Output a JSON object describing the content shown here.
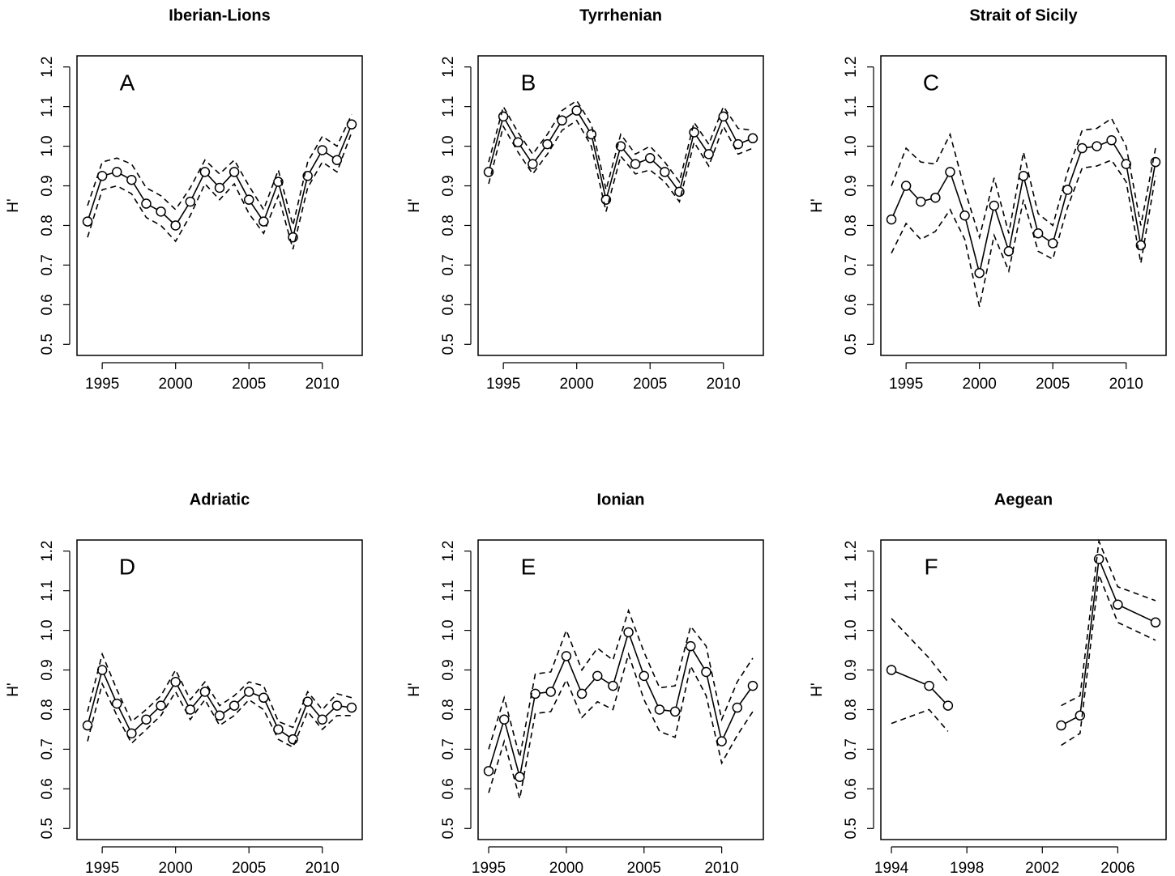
{
  "chart_data": [
    {
      "type": "line",
      "title": "Iberian-Lions",
      "annotation": "A",
      "ylabel": "H'",
      "x": [
        1994,
        1995,
        1996,
        1997,
        1998,
        1999,
        2000,
        2001,
        2002,
        2003,
        2004,
        2005,
        2006,
        2007,
        2008,
        2009,
        2010,
        2011,
        2012
      ],
      "series": [
        {
          "color": "#000000",
          "markers": true,
          "values": [
            0.81,
            0.925,
            0.935,
            0.915,
            0.855,
            0.835,
            0.8,
            0.86,
            0.935,
            0.895,
            0.935,
            0.865,
            0.81,
            0.91,
            0.77,
            0.925,
            0.99,
            0.965,
            1.055
          ]
        },
        {
          "color": "#000000",
          "dashed": true,
          "values": [
            0.85,
            0.96,
            0.97,
            0.955,
            0.895,
            0.875,
            0.84,
            0.895,
            0.965,
            0.93,
            0.965,
            0.9,
            0.84,
            0.94,
            0.8,
            0.96,
            1.025,
            1.0,
            1.08
          ]
        },
        {
          "color": "#000000",
          "dashed": true,
          "values": [
            0.77,
            0.89,
            0.9,
            0.88,
            0.82,
            0.8,
            0.76,
            0.825,
            0.905,
            0.865,
            0.905,
            0.83,
            0.78,
            0.875,
            0.74,
            0.895,
            0.96,
            0.935,
            1.035
          ]
        }
      ],
      "xlim": [
        1993.28,
        2012.72
      ],
      "xticks": [
        1995,
        2000,
        2005,
        2010
      ],
      "ylim": [
        0.472,
        1.228
      ],
      "yticks": [
        0.5,
        0.6,
        0.7,
        0.8,
        0.9,
        {
          "value": 1.0,
          "label": "1.0"
        },
        1.1,
        1.2
      ]
    },
    {
      "type": "line",
      "title": "Tyrrhenian",
      "annotation": "B",
      "ylabel": "H'",
      "x": [
        1994,
        1995,
        1996,
        1997,
        1998,
        1999,
        2000,
        2001,
        2002,
        2003,
        2004,
        2005,
        2006,
        2007,
        2008,
        2009,
        2010,
        2011,
        2012
      ],
      "series": [
        {
          "color": "#000000",
          "markers": true,
          "values": [
            0.935,
            1.075,
            1.01,
            0.955,
            1.005,
            1.065,
            1.09,
            1.03,
            0.865,
            1.0,
            0.955,
            0.97,
            0.935,
            0.885,
            1.035,
            0.98,
            1.075,
            1.005,
            1.02
          ]
        },
        {
          "color": "#000000",
          "dashed": true,
          "values": [
            0.96,
            1.1,
            1.035,
            0.98,
            1.03,
            1.09,
            1.115,
            1.055,
            0.89,
            1.03,
            0.98,
            1.0,
            0.96,
            0.91,
            1.06,
            1.005,
            1.1,
            1.045,
            1.04
          ]
        },
        {
          "color": "#000000",
          "dashed": true,
          "values": [
            0.905,
            1.05,
            0.985,
            0.93,
            0.98,
            1.04,
            1.065,
            1.0,
            0.835,
            0.975,
            0.93,
            0.94,
            0.91,
            0.86,
            1.01,
            0.95,
            1.05,
            0.98,
            0.995
          ]
        }
      ],
      "xlim": [
        1993.28,
        2012.72
      ],
      "xticks": [
        1995,
        2000,
        2005,
        2010
      ],
      "ylim": [
        0.472,
        1.228
      ],
      "yticks": [
        0.5,
        0.6,
        0.7,
        0.8,
        0.9,
        {
          "value": 1.0,
          "label": "1.0"
        },
        1.1,
        1.2
      ]
    },
    {
      "type": "line",
      "title": "Strait of Sicily",
      "annotation": "C",
      "ylabel": "H'",
      "x": [
        1994,
        1995,
        1996,
        1997,
        1998,
        1999,
        2000,
        2001,
        2002,
        2003,
        2004,
        2005,
        2006,
        2007,
        2008,
        2009,
        2010,
        2011,
        2012
      ],
      "series": [
        {
          "color": "#000000",
          "markers": true,
          "values": [
            0.815,
            0.9,
            0.86,
            0.87,
            0.935,
            0.825,
            0.68,
            0.85,
            0.735,
            0.925,
            0.78,
            0.755,
            0.89,
            0.995,
            1.0,
            1.015,
            0.955,
            0.75,
            0.96
          ]
        },
        {
          "color": "#000000",
          "dashed": true,
          "values": [
            0.9,
            0.995,
            0.96,
            0.955,
            1.03,
            0.89,
            0.77,
            0.92,
            0.78,
            0.985,
            0.83,
            0.8,
            0.935,
            1.04,
            1.045,
            1.07,
            1.0,
            0.8,
            0.995
          ]
        },
        {
          "color": "#000000",
          "dashed": true,
          "values": [
            0.73,
            0.805,
            0.765,
            0.785,
            0.84,
            0.765,
            0.595,
            0.775,
            0.685,
            0.865,
            0.735,
            0.715,
            0.845,
            0.945,
            0.95,
            0.965,
            0.91,
            0.705,
            0.925
          ]
        }
      ],
      "xlim": [
        1993.28,
        2012.72
      ],
      "xticks": [
        1995,
        2000,
        2005,
        2010
      ],
      "ylim": [
        0.472,
        1.228
      ],
      "yticks": [
        0.5,
        0.6,
        0.7,
        0.8,
        0.9,
        {
          "value": 1.0,
          "label": "1.0"
        },
        1.1,
        1.2
      ]
    },
    {
      "type": "line",
      "title": "Adriatic",
      "annotation": "D",
      "ylabel": "H'",
      "x": [
        1994,
        1995,
        1996,
        1997,
        1998,
        1999,
        2000,
        2001,
        2002,
        2003,
        2004,
        2005,
        2006,
        2007,
        2008,
        2009,
        2010,
        2011,
        2012
      ],
      "series": [
        {
          "color": "#000000",
          "markers": true,
          "values": [
            0.76,
            0.9,
            0.815,
            0.74,
            0.775,
            0.81,
            0.87,
            0.8,
            0.845,
            0.785,
            0.81,
            0.845,
            0.83,
            0.75,
            0.725,
            0.82,
            0.775,
            0.81,
            0.805
          ]
        },
        {
          "color": "#000000",
          "dashed": true,
          "values": [
            0.795,
            0.94,
            0.85,
            0.77,
            0.8,
            0.835,
            0.9,
            0.825,
            0.87,
            0.81,
            0.835,
            0.87,
            0.86,
            0.77,
            0.755,
            0.845,
            0.8,
            0.84,
            0.83
          ]
        },
        {
          "color": "#000000",
          "dashed": true,
          "values": [
            0.72,
            0.865,
            0.785,
            0.715,
            0.75,
            0.785,
            0.845,
            0.775,
            0.825,
            0.76,
            0.785,
            0.825,
            0.8,
            0.725,
            0.705,
            0.795,
            0.75,
            0.785,
            0.785
          ]
        }
      ],
      "xlim": [
        1993.28,
        2012.72
      ],
      "xticks": [
        1995,
        2000,
        2005,
        2010
      ],
      "ylim": [
        0.472,
        1.228
      ],
      "yticks": [
        0.5,
        0.6,
        0.7,
        0.8,
        0.9,
        {
          "value": 1.0,
          "label": "1.0"
        },
        1.1,
        1.2
      ]
    },
    {
      "type": "line",
      "title": "Ionian",
      "annotation": "E",
      "ylabel": "H'",
      "x": [
        1995,
        1996,
        1997,
        1998,
        1999,
        2000,
        2001,
        2002,
        2003,
        2004,
        2005,
        2006,
        2007,
        2008,
        2009,
        2010,
        2011,
        2012
      ],
      "series": [
        {
          "color": "#000000",
          "markers": true,
          "values": [
            0.645,
            0.775,
            0.63,
            0.84,
            0.845,
            0.935,
            0.84,
            0.885,
            0.86,
            0.995,
            0.885,
            0.8,
            0.795,
            0.96,
            0.895,
            0.72,
            0.805,
            0.86
          ]
        },
        {
          "color": "#000000",
          "dashed": true,
          "values": [
            0.7,
            0.83,
            0.68,
            0.89,
            0.895,
            1.0,
            0.9,
            0.955,
            0.925,
            1.05,
            0.945,
            0.855,
            0.86,
            1.01,
            0.96,
            0.775,
            0.87,
            0.93
          ]
        },
        {
          "color": "#000000",
          "dashed": true,
          "values": [
            0.59,
            0.72,
            0.575,
            0.79,
            0.795,
            0.875,
            0.78,
            0.82,
            0.8,
            0.94,
            0.825,
            0.745,
            0.73,
            0.91,
            0.835,
            0.665,
            0.735,
            0.795
          ]
        }
      ],
      "xlim": [
        1994.32,
        2012.68
      ],
      "xticks": [
        1995,
        2000,
        2005,
        2010
      ],
      "ylim": [
        0.472,
        1.228
      ],
      "yticks": [
        0.5,
        0.6,
        0.7,
        0.8,
        0.9,
        {
          "value": 1.0,
          "label": "1.0"
        },
        1.1,
        1.2
      ]
    },
    {
      "type": "line",
      "title": "Aegean",
      "annotation": "F",
      "ylabel": "H'",
      "x": [
        1994,
        1996,
        1997,
        null,
        2003,
        2004,
        2005,
        2006,
        2008
      ],
      "series": [
        {
          "color": "#000000",
          "markers": true,
          "values": [
            0.9,
            0.86,
            0.81,
            null,
            0.76,
            0.785,
            1.18,
            1.065,
            1.02
          ]
        },
        {
          "color": "#000000",
          "dashed": true,
          "values": [
            1.03,
            0.93,
            0.87,
            null,
            0.81,
            0.835,
            1.225,
            1.11,
            1.075
          ]
        },
        {
          "color": "#000000",
          "dashed": true,
          "values": [
            0.765,
            0.8,
            0.745,
            null,
            0.71,
            0.74,
            1.14,
            1.02,
            0.975
          ]
        }
      ],
      "xlim": [
        1993.44,
        2008.56
      ],
      "xticks": [
        1994,
        1998,
        2002,
        2006
      ],
      "ylim": [
        0.472,
        1.228
      ],
      "yticks": [
        0.5,
        0.6,
        0.7,
        0.8,
        0.9,
        {
          "value": 1.0,
          "label": "1.0"
        },
        1.1,
        1.2
      ]
    }
  ]
}
